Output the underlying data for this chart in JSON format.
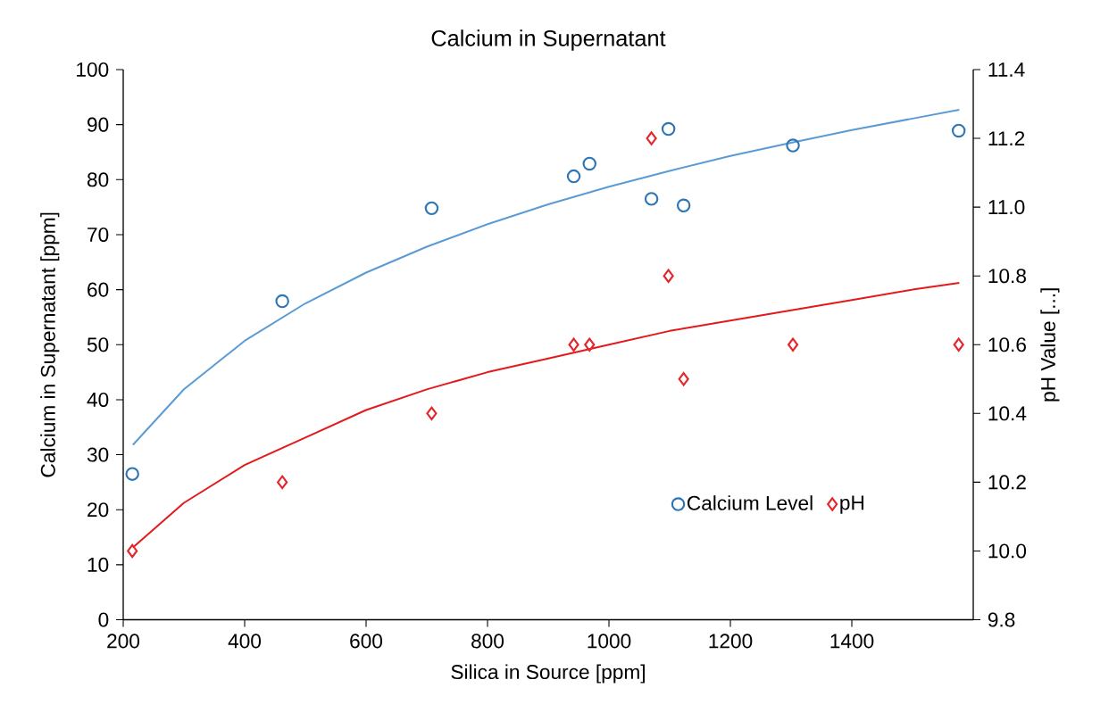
{
  "chart_data": {
    "type": "scatter",
    "title": "Calcium in Supernatant",
    "xlabel": "Silica in Source [ppm]",
    "ylabel": "Calcium in Supernatant [ppm]",
    "y2label": "pH Value [...]",
    "xlim": [
      200,
      1600
    ],
    "xticks": [
      200,
      400,
      600,
      800,
      1000,
      1200,
      1400
    ],
    "ylim": [
      0,
      100
    ],
    "yticks": [
      0,
      10,
      20,
      30,
      40,
      50,
      60,
      70,
      80,
      90,
      100
    ],
    "y2lim": [
      9.8,
      11.4
    ],
    "y2ticks": [
      9.8,
      {
        "value": 10,
        "label": "10.0"
      },
      10.2,
      10.4,
      10.6,
      10.8,
      {
        "value": 11,
        "label": "11.0"
      },
      11.2,
      11.4
    ],
    "legend": "bottom right",
    "series": [
      {
        "name": "Calcium Level",
        "marker": "circle",
        "color": "#2e75b6",
        "x": [
          215,
          462,
          708,
          942,
          968,
          1070,
          1098,
          1123,
          1303,
          1576
        ],
        "values": [
          26.5,
          57.9,
          74.8,
          80.6,
          82.9,
          76.5,
          89.2,
          75.3,
          86.2,
          88.9
        ]
      },
      {
        "name": "pH",
        "marker": "diamond",
        "axis": "y2",
        "color": "#e3262b",
        "x": [
          215,
          462,
          708,
          942,
          968,
          1070,
          1098,
          1123,
          1303,
          1576
        ],
        "values": [
          10.0,
          10.2,
          10.4,
          10.6,
          10.6,
          11.2,
          10.8,
          10.5,
          10.6,
          10.6
        ]
      },
      {
        "type": "line",
        "marker": "none",
        "color": "#5b9bd5",
        "x": [
          216,
          300,
          400,
          500,
          600,
          700,
          800,
          900,
          1000,
          1100,
          1200,
          1300,
          1400,
          1500,
          1577
        ],
        "values": [
          31.8,
          41.9,
          50.7,
          57.5,
          63.1,
          67.8,
          71.9,
          75.5,
          78.7,
          81.6,
          84.3,
          86.7,
          89.0,
          91.1,
          92.7
        ]
      },
      {
        "type": "line",
        "marker": "none",
        "axis": "y2",
        "color": "#e31a1c",
        "x": [
          216,
          300,
          400,
          500,
          600,
          700,
          800,
          900,
          1000,
          1100,
          1200,
          1300,
          1400,
          1500,
          1577
        ],
        "values": [
          10.01,
          10.14,
          10.25,
          10.33,
          10.41,
          10.47,
          10.52,
          10.56,
          10.6,
          10.64,
          10.67,
          10.7,
          10.73,
          10.76,
          10.78
        ]
      }
    ]
  }
}
